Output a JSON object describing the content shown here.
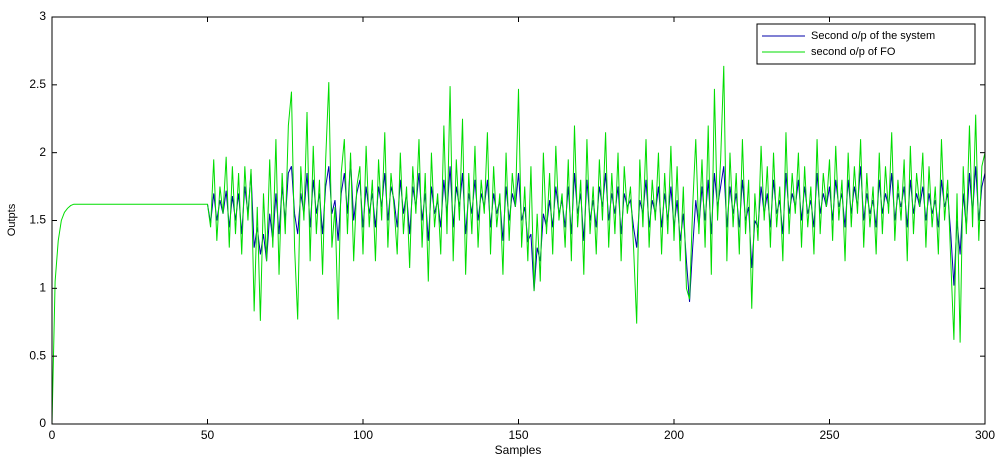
{
  "chart_data": {
    "type": "line",
    "xlabel": "Samples",
    "ylabel": "Outpts",
    "xlim": [
      0,
      300
    ],
    "xticks": [
      0,
      50,
      100,
      150,
      200,
      250,
      300
    ],
    "ylim": [
      0,
      3
    ],
    "yticks": [
      0,
      0.5,
      1,
      1.5,
      2,
      2.5,
      3
    ],
    "grid": false,
    "legend": "upper right",
    "x": [
      0,
      1,
      2,
      3,
      4,
      5,
      6,
      7,
      8,
      9,
      10,
      11,
      12,
      13,
      14,
      15,
      16,
      17,
      18,
      19,
      20,
      21,
      22,
      23,
      24,
      25,
      26,
      27,
      28,
      29,
      30,
      31,
      32,
      33,
      34,
      35,
      36,
      37,
      38,
      39,
      40,
      41,
      42,
      43,
      44,
      45,
      46,
      47,
      48,
      49,
      50,
      51,
      52,
      53,
      54,
      55,
      56,
      57,
      58,
      59,
      60,
      61,
      62,
      63,
      64,
      65,
      66,
      67,
      68,
      69,
      70,
      71,
      72,
      73,
      74,
      75,
      76,
      77,
      78,
      79,
      80,
      81,
      82,
      83,
      84,
      85,
      86,
      87,
      88,
      89,
      90,
      91,
      92,
      93,
      94,
      95,
      96,
      97,
      98,
      99,
      100,
      101,
      102,
      103,
      104,
      105,
      106,
      107,
      108,
      109,
      110,
      111,
      112,
      113,
      114,
      115,
      116,
      117,
      118,
      119,
      120,
      121,
      122,
      123,
      124,
      125,
      126,
      127,
      128,
      129,
      130,
      131,
      132,
      133,
      134,
      135,
      136,
      137,
      138,
      139,
      140,
      141,
      142,
      143,
      144,
      145,
      146,
      147,
      148,
      149,
      150,
      151,
      152,
      153,
      154,
      155,
      156,
      157,
      158,
      159,
      160,
      161,
      162,
      163,
      164,
      165,
      166,
      167,
      168,
      169,
      170,
      171,
      172,
      173,
      174,
      175,
      176,
      177,
      178,
      179,
      180,
      181,
      182,
      183,
      184,
      185,
      186,
      187,
      188,
      189,
      190,
      191,
      192,
      193,
      194,
      195,
      196,
      197,
      198,
      199,
      200,
      201,
      202,
      203,
      204,
      205,
      206,
      207,
      208,
      209,
      210,
      211,
      212,
      213,
      214,
      215,
      216,
      217,
      218,
      219,
      220,
      221,
      222,
      223,
      224,
      225,
      226,
      227,
      228,
      229,
      230,
      231,
      232,
      233,
      234,
      235,
      236,
      237,
      238,
      239,
      240,
      241,
      242,
      243,
      244,
      245,
      246,
      247,
      248,
      249,
      250,
      251,
      252,
      253,
      254,
      255,
      256,
      257,
      258,
      259,
      260,
      261,
      262,
      263,
      264,
      265,
      266,
      267,
      268,
      269,
      270,
      271,
      272,
      273,
      274,
      275,
      276,
      277,
      278,
      279,
      280,
      281,
      282,
      283,
      284,
      285,
      286,
      287,
      288,
      289,
      290,
      291,
      292,
      293,
      294,
      295,
      296,
      297,
      298,
      299,
      300
    ],
    "series": [
      {
        "name": "Second o/p of the system",
        "color": "#0000aa",
        "values": [
          null,
          null,
          null,
          null,
          null,
          null,
          null,
          null,
          null,
          null,
          null,
          null,
          null,
          null,
          null,
          null,
          null,
          null,
          null,
          null,
          null,
          null,
          null,
          null,
          null,
          null,
          null,
          null,
          null,
          null,
          null,
          null,
          null,
          null,
          null,
          null,
          null,
          null,
          null,
          null,
          null,
          null,
          null,
          null,
          null,
          null,
          null,
          null,
          null,
          null,
          1.62,
          1.48,
          1.7,
          1.5,
          1.65,
          1.55,
          1.72,
          1.45,
          1.68,
          1.5,
          1.7,
          1.4,
          1.75,
          1.55,
          1.85,
          1.3,
          1.45,
          1.25,
          1.4,
          1.2,
          1.55,
          1.35,
          1.7,
          1.4,
          1.75,
          1.5,
          1.85,
          1.9,
          1.55,
          1.4,
          1.7,
          1.55,
          1.85,
          1.45,
          1.8,
          1.55,
          1.7,
          1.4,
          1.75,
          1.9,
          1.55,
          1.65,
          1.35,
          1.7,
          1.85,
          1.55,
          1.95,
          1.5,
          1.7,
          1.8,
          1.45,
          1.75,
          1.55,
          1.7,
          1.45,
          1.75,
          1.6,
          1.85,
          1.5,
          1.75,
          1.65,
          1.45,
          1.8,
          1.55,
          1.7,
          1.4,
          1.75,
          1.6,
          1.85,
          1.5,
          1.7,
          1.35,
          1.75,
          1.55,
          1.65,
          1.45,
          1.8,
          1.55,
          1.9,
          1.45,
          1.75,
          1.6,
          1.85,
          1.4,
          1.7,
          1.55,
          1.8,
          1.5,
          1.7,
          1.6,
          1.8,
          1.45,
          1.7,
          1.55,
          1.65,
          1.35,
          1.75,
          1.5,
          1.7,
          1.6,
          1.85,
          1.5,
          1.6,
          1.35,
          1.4,
          0.98,
          1.3,
          1.2,
          1.55,
          1.45,
          1.65,
          1.45,
          1.75,
          1.55,
          1.65,
          1.45,
          1.75,
          1.4,
          1.85,
          1.55,
          1.7,
          1.35,
          1.8,
          1.5,
          1.65,
          1.45,
          1.75,
          1.6,
          1.85,
          1.5,
          1.7,
          1.55,
          1.75,
          1.4,
          1.7,
          1.6,
          1.65,
          1.45,
          1.3,
          1.65,
          1.55,
          1.8,
          1.45,
          1.65,
          1.55,
          1.75,
          1.45,
          1.7,
          1.5,
          1.75,
          1.45,
          1.65,
          1.35,
          1.55,
          1.2,
          0.9,
          1.3,
          1.65,
          1.45,
          1.75,
          1.5,
          1.8,
          1.4,
          1.85,
          1.6,
          1.75,
          1.9,
          1.45,
          1.75,
          1.55,
          1.7,
          1.45,
          1.8,
          1.5,
          1.6,
          1.15,
          1.5,
          1.45,
          1.75,
          1.55,
          1.7,
          1.45,
          1.8,
          1.55,
          1.65,
          1.4,
          1.85,
          1.55,
          1.7,
          1.6,
          1.8,
          1.5,
          1.75,
          1.55,
          1.65,
          1.45,
          1.85,
          1.55,
          1.7,
          1.6,
          1.75,
          1.5,
          1.8,
          1.6,
          1.7,
          1.45,
          1.8,
          1.55,
          1.75,
          1.6,
          1.9,
          1.5,
          1.7,
          1.55,
          1.65,
          1.45,
          1.8,
          1.55,
          1.7,
          1.6,
          1.85,
          1.5,
          1.7,
          1.6,
          1.75,
          1.45,
          1.8,
          1.55,
          1.7,
          1.6,
          1.75,
          1.5,
          1.7,
          1.55,
          1.65,
          1.45,
          1.8,
          1.6,
          1.7,
          1.4,
          1.02,
          1.5,
          1.25,
          1.7,
          1.45,
          1.85,
          1.55,
          1.9,
          1.5,
          1.75,
          1.85
        ]
      },
      {
        "name": "second o/p of FO",
        "color": "#00dd00",
        "values": [
          0,
          1.05,
          1.35,
          1.5,
          1.56,
          1.59,
          1.61,
          1.62,
          1.62,
          1.62,
          1.62,
          1.62,
          1.62,
          1.62,
          1.62,
          1.62,
          1.62,
          1.62,
          1.62,
          1.62,
          1.62,
          1.62,
          1.62,
          1.62,
          1.62,
          1.62,
          1.62,
          1.62,
          1.62,
          1.62,
          1.62,
          1.62,
          1.62,
          1.62,
          1.62,
          1.62,
          1.62,
          1.62,
          1.62,
          1.62,
          1.62,
          1.62,
          1.62,
          1.62,
          1.62,
          1.62,
          1.62,
          1.62,
          1.62,
          1.62,
          1.62,
          1.45,
          1.95,
          1.35,
          1.75,
          1.55,
          1.97,
          1.3,
          1.9,
          1.4,
          1.85,
          1.25,
          1.9,
          1.5,
          1.88,
          0.83,
          1.6,
          0.76,
          1.7,
          1.2,
          1.95,
          1.3,
          2.1,
          1.1,
          1.85,
          1.4,
          2.2,
          2.45,
          1.3,
          0.77,
          1.9,
          1.5,
          2.3,
          1.2,
          2.05,
          1.4,
          1.8,
          1.1,
          1.95,
          2.52,
          1.3,
          1.6,
          0.77,
          1.85,
          2.1,
          1.4,
          2.0,
          1.2,
          1.75,
          1.9,
          1.25,
          2.05,
          1.45,
          1.8,
          1.2,
          1.95,
          1.5,
          2.15,
          1.3,
          1.85,
          1.6,
          1.25,
          2.0,
          1.4,
          1.75,
          1.15,
          1.9,
          1.55,
          2.1,
          1.3,
          1.85,
          1.05,
          2.0,
          1.45,
          1.7,
          1.25,
          2.2,
          1.4,
          2.49,
          1.2,
          1.95,
          1.5,
          2.25,
          1.1,
          1.85,
          1.4,
          2.05,
          1.3,
          1.8,
          1.55,
          2.15,
          1.25,
          1.9,
          1.45,
          1.7,
          1.1,
          2.0,
          1.35,
          1.85,
          1.6,
          2.47,
          1.3,
          1.75,
          1.2,
          1.9,
          0.98,
          1.55,
          1.05,
          2.0,
          1.4,
          1.85,
          1.25,
          2.05,
          1.5,
          1.7,
          1.3,
          1.95,
          1.2,
          2.2,
          1.45,
          1.8,
          1.1,
          2.1,
          1.4,
          1.75,
          1.25,
          1.95,
          1.5,
          2.15,
          1.3,
          1.85,
          1.4,
          2.0,
          1.2,
          1.9,
          1.55,
          1.75,
          1.3,
          0.74,
          1.95,
          1.45,
          2.1,
          1.3,
          1.8,
          1.5,
          2.0,
          1.25,
          1.85,
          1.4,
          2.05,
          1.35,
          1.9,
          1.2,
          1.75,
          1.0,
          0.92,
          1.6,
          2.1,
          1.4,
          1.95,
          1.3,
          2.2,
          1.1,
          2.47,
          1.5,
          1.95,
          2.64,
          1.2,
          2.0,
          1.45,
          1.85,
          1.25,
          2.1,
          1.4,
          1.8,
          0.85,
          1.7,
          1.35,
          2.05,
          1.5,
          1.9,
          1.3,
          2.0,
          1.45,
          1.75,
          1.2,
          2.15,
          1.4,
          1.85,
          1.55,
          2.0,
          1.3,
          1.9,
          1.45,
          1.75,
          1.25,
          2.1,
          1.4,
          1.85,
          1.6,
          1.95,
          1.35,
          2.05,
          1.5,
          1.8,
          1.2,
          2.0,
          1.45,
          1.9,
          1.55,
          2.1,
          1.3,
          1.85,
          1.45,
          1.75,
          1.25,
          2.0,
          1.4,
          1.9,
          1.55,
          2.15,
          1.35,
          1.8,
          1.5,
          1.95,
          1.2,
          2.05,
          1.4,
          1.85,
          1.6,
          2.0,
          1.3,
          1.9,
          1.45,
          1.75,
          1.25,
          2.1,
          1.5,
          1.8,
          1.2,
          0.62,
          1.7,
          0.6,
          1.9,
          1.4,
          2.2,
          1.45,
          2.28,
          1.35,
          1.9,
          2.0
        ]
      }
    ]
  }
}
